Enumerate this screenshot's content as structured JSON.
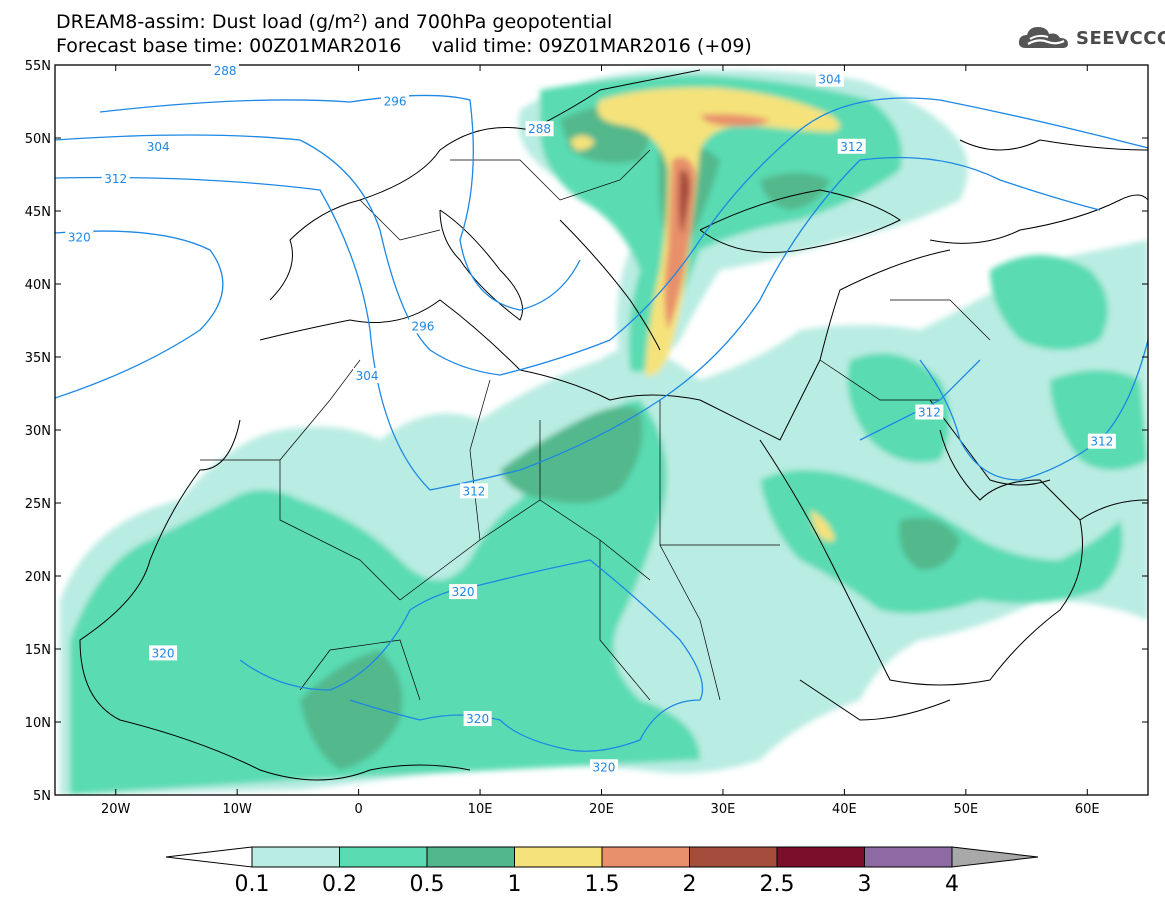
{
  "title_line1": "DREAM8-assim: Dust load (g/m²) and 700hPa geopotential",
  "title_line2": "Forecast base time: 00Z01MAR2016     valid time: 09Z01MAR2016 (+09)",
  "logo": {
    "text": "SEEVCCC",
    "icon": "cloud-icon"
  },
  "map": {
    "lon_range": [
      -25,
      65
    ],
    "lat_range": [
      5,
      55
    ],
    "lat_ticks": [
      {
        "value": 55,
        "label": "55N"
      },
      {
        "value": 50,
        "label": "50N"
      },
      {
        "value": 45,
        "label": "45N"
      },
      {
        "value": 40,
        "label": "40N"
      },
      {
        "value": 35,
        "label": "35N"
      },
      {
        "value": 30,
        "label": "30N"
      },
      {
        "value": 25,
        "label": "25N"
      },
      {
        "value": 20,
        "label": "20N"
      },
      {
        "value": 15,
        "label": "15N"
      },
      {
        "value": 10,
        "label": "10N"
      },
      {
        "value": 5,
        "label": "5N"
      }
    ],
    "lon_ticks": [
      {
        "value": -20,
        "label": "20W"
      },
      {
        "value": -10,
        "label": "10W"
      },
      {
        "value": 0,
        "label": "0"
      },
      {
        "value": 10,
        "label": "10E"
      },
      {
        "value": 20,
        "label": "20E"
      },
      {
        "value": 30,
        "label": "30E"
      },
      {
        "value": 40,
        "label": "40E"
      },
      {
        "value": 50,
        "label": "50E"
      },
      {
        "value": 60,
        "label": "60E"
      }
    ],
    "contour_color": "#1e88e5",
    "contour_labels": [
      {
        "text": "288",
        "lon": -11,
        "lat": 54.6
      },
      {
        "text": "296",
        "lon": 3,
        "lat": 52.5
      },
      {
        "text": "304",
        "lon": -16.5,
        "lat": 49.4
      },
      {
        "text": "312",
        "lon": -20,
        "lat": 47.2
      },
      {
        "text": "320",
        "lon": -23,
        "lat": 43.2
      },
      {
        "text": "288",
        "lon": 14.9,
        "lat": 50.6
      },
      {
        "text": "304",
        "lon": 38.8,
        "lat": 54.0
      },
      {
        "text": "312",
        "lon": 40.6,
        "lat": 49.4
      },
      {
        "text": "296",
        "lon": 5.3,
        "lat": 37.1
      },
      {
        "text": "304",
        "lon": 0.7,
        "lat": 33.7
      },
      {
        "text": "312",
        "lon": 9.5,
        "lat": 25.8
      },
      {
        "text": "312",
        "lon": 47.0,
        "lat": 31.2
      },
      {
        "text": "312",
        "lon": 61.2,
        "lat": 29.2
      },
      {
        "text": "320",
        "lon": 8.6,
        "lat": 18.9
      },
      {
        "text": "320",
        "lon": -16.1,
        "lat": 14.7
      },
      {
        "text": "320",
        "lon": 9.8,
        "lat": 10.2
      },
      {
        "text": "320",
        "lon": 20.2,
        "lat": 6.9
      }
    ]
  },
  "colorbar": {
    "labels": [
      "0.1",
      "0.2",
      "0.5",
      "1",
      "1.5",
      "2",
      "2.5",
      "3",
      "4"
    ],
    "colors": [
      "#ffffff",
      "#b9ece2",
      "#5adbb2",
      "#52b88c",
      "#f5e27a",
      "#e8906b",
      "#a64c3c",
      "#7a0e2b",
      "#8e6aa3",
      "#a8a8a8"
    ]
  }
}
